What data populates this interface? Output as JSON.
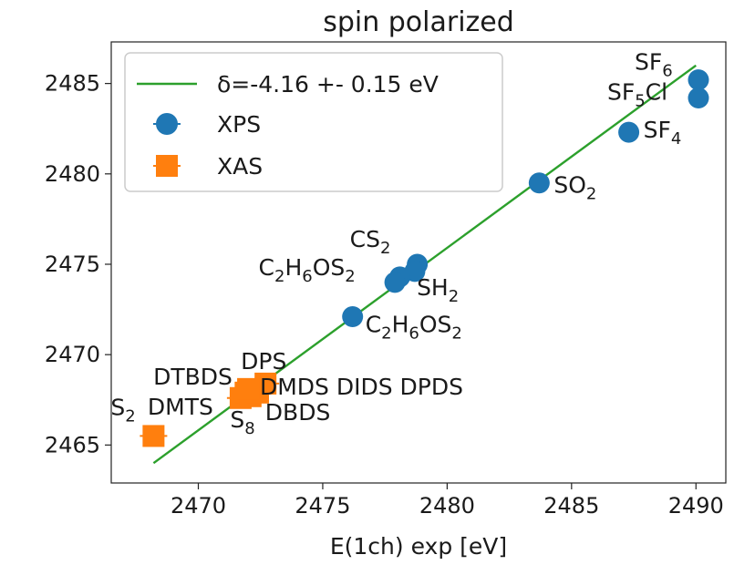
{
  "chart_data": {
    "type": "scatter",
    "title": "spin polarized",
    "xlabel": "E(1ch) exp [eV]",
    "ylabel": "",
    "xlim": [
      2466.5,
      2491.2
    ],
    "ylim": [
      2462.9,
      2487.3
    ],
    "xticks": [
      2470,
      2475,
      2480,
      2485,
      2490
    ],
    "yticks": [
      2465,
      2470,
      2475,
      2480,
      2485
    ],
    "grid": false,
    "legend": {
      "location": "top-left",
      "entries": [
        {
          "label": "δ=-4.16 +- 0.15 eV",
          "marker": "line",
          "color": "#2ca02c"
        },
        {
          "label": "XPS",
          "marker": "circle",
          "color": "#1f77b4"
        },
        {
          "label": "XAS",
          "marker": "square",
          "color": "#ff7f0e"
        }
      ]
    },
    "fit_line": {
      "label": "δ=-4.16 +- 0.15 eV",
      "color": "#2ca02c",
      "points": [
        [
          2468.2,
          2464.0
        ],
        [
          2490.0,
          2486.0
        ]
      ]
    },
    "series": [
      {
        "name": "XPS",
        "color": "#1f77b4",
        "marker": "circle",
        "points": [
          {
            "x": 2490.1,
            "y": 2485.2
          },
          {
            "x": 2490.1,
            "y": 2484.2
          },
          {
            "x": 2487.3,
            "y": 2482.3
          },
          {
            "x": 2483.7,
            "y": 2479.5
          },
          {
            "x": 2478.8,
            "y": 2475.0
          },
          {
            "x": 2478.7,
            "y": 2474.6
          },
          {
            "x": 2478.1,
            "y": 2474.3
          },
          {
            "x": 2477.9,
            "y": 2474.0
          },
          {
            "x": 2476.2,
            "y": 2472.1
          }
        ]
      },
      {
        "name": "XAS",
        "color": "#ff7f0e",
        "marker": "square",
        "points": [
          {
            "x": 2468.2,
            "y": 2465.5
          },
          {
            "x": 2471.7,
            "y": 2467.6
          },
          {
            "x": 2471.9,
            "y": 2467.9
          },
          {
            "x": 2472.1,
            "y": 2467.7
          },
          {
            "x": 2472.4,
            "y": 2467.9
          },
          {
            "x": 2472.7,
            "y": 2468.4
          },
          {
            "x": 2472.0,
            "y": 2468.1
          }
        ]
      }
    ],
    "annotations": [
      {
        "parts": [
          [
            "SF",
            ""
          ],
          [
            "6",
            "sub"
          ]
        ],
        "x": 2490.1,
        "y": 2485.2
      },
      {
        "parts": [
          [
            "SF",
            ""
          ],
          [
            "5",
            "sub"
          ],
          [
            "Cl",
            ""
          ]
        ],
        "x": 2490.1,
        "y": 2484.2
      },
      {
        "parts": [
          [
            "SF",
            ""
          ],
          [
            "4",
            "sub"
          ]
        ],
        "x": 2487.3,
        "y": 2482.3
      },
      {
        "parts": [
          [
            "SO",
            ""
          ],
          [
            "2",
            "sub"
          ]
        ],
        "x": 2483.7,
        "y": 2479.5
      },
      {
        "parts": [
          [
            "SH",
            ""
          ],
          [
            "2",
            "sub"
          ]
        ],
        "x": 2477.9,
        "y": 2474.0
      },
      {
        "parts": [
          [
            "CS",
            ""
          ],
          [
            "2",
            "sub"
          ]
        ],
        "x": 2478.8,
        "y": 2475.0
      },
      {
        "parts": [
          [
            "C",
            ""
          ],
          [
            "2",
            "sub"
          ],
          [
            "H",
            ""
          ],
          [
            "6",
            "sub"
          ],
          [
            "OS",
            ""
          ],
          [
            "2",
            "sub"
          ]
        ],
        "x": 2478.1,
        "y": 2474.3
      },
      {
        "parts": [
          [
            "C",
            ""
          ],
          [
            "2",
            "sub"
          ],
          [
            "H",
            ""
          ],
          [
            "6",
            "sub"
          ],
          [
            "OS",
            ""
          ],
          [
            "2",
            "sub"
          ]
        ],
        "x": 2476.2,
        "y": 2472.1
      },
      {
        "parts": [
          [
            "DPS",
            ""
          ]
        ],
        "x": 2472.7,
        "y": 2468.4
      },
      {
        "parts": [
          [
            "DTBDS",
            ""
          ]
        ],
        "x": 2472.0,
        "y": 2468.1
      },
      {
        "parts": [
          [
            "DMTS",
            ""
          ]
        ],
        "x": 2471.7,
        "y": 2467.6
      },
      {
        "parts": [
          [
            "DMDS DIDS DPDS",
            ""
          ]
        ],
        "x": 2472.4,
        "y": 2467.9
      },
      {
        "parts": [
          [
            "DBDS",
            ""
          ]
        ],
        "x": 2472.1,
        "y": 2467.7
      },
      {
        "parts": [
          [
            "S",
            ""
          ],
          [
            "2",
            "sub"
          ]
        ],
        "x": 2468.2,
        "y": 2465.5
      },
      {
        "parts": [
          [
            "S",
            ""
          ],
          [
            "8",
            "sub"
          ]
        ],
        "x": 2471.9,
        "y": 2467.9
      }
    ]
  }
}
